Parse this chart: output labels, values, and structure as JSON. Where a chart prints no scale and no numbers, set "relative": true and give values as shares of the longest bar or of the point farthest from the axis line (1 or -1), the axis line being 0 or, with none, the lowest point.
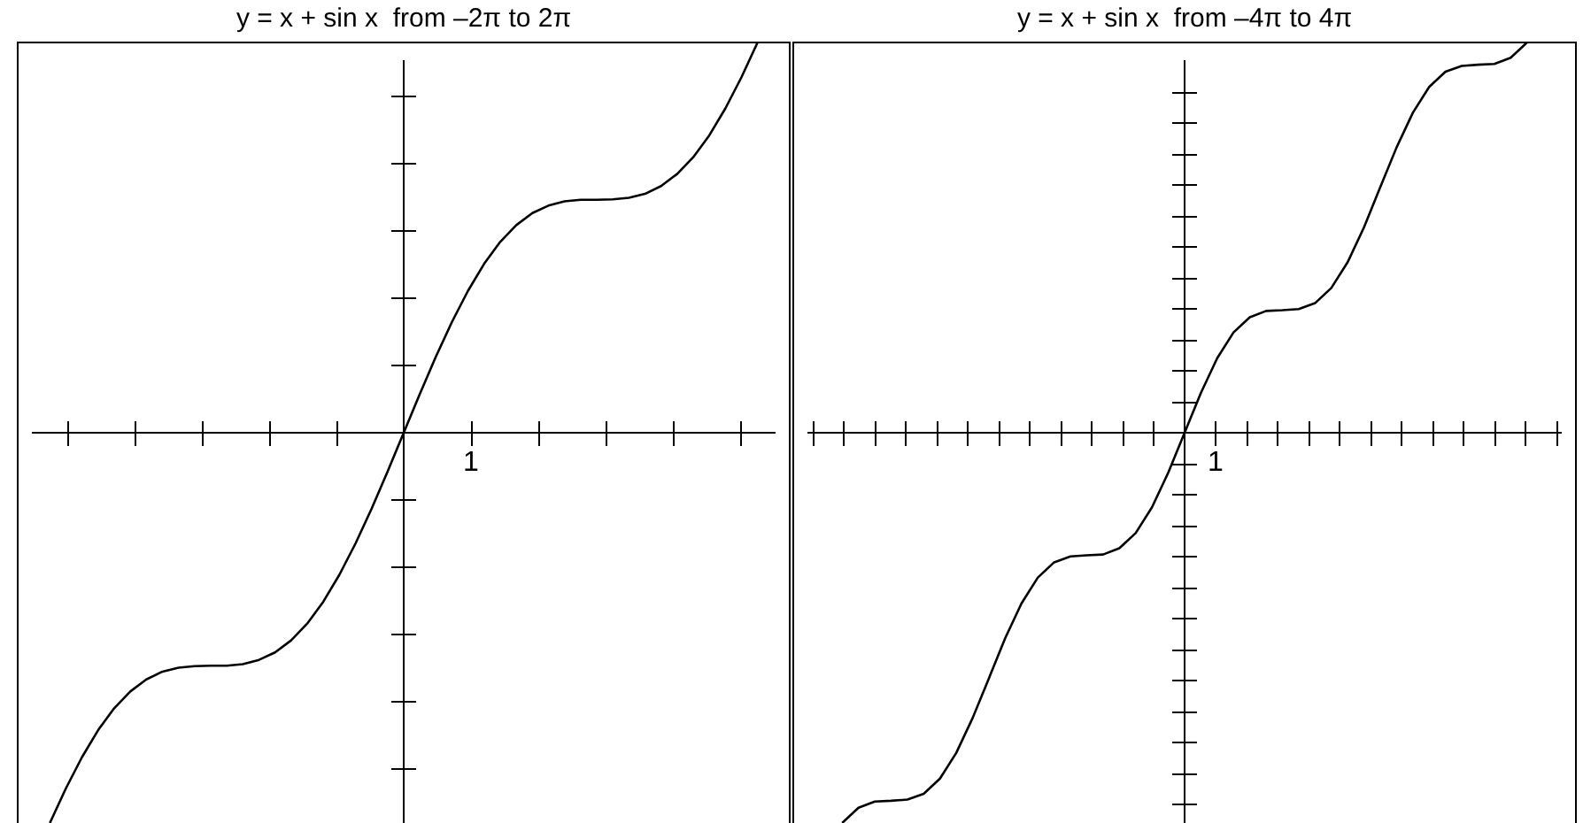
{
  "chart_data": [
    {
      "type": "line",
      "title": "y = x + sin x  from –2π to 2π",
      "relative": true,
      "legend": false,
      "marker": "none",
      "annotations": [
        "1"
      ],
      "categories": [
        null,
        null,
        null,
        null,
        null,
        null,
        null,
        null,
        null,
        null,
        null,
        null,
        null,
        null,
        null,
        null,
        null,
        null,
        null,
        null,
        null,
        null,
        null,
        null,
        null,
        null,
        null,
        null,
        null,
        null,
        null,
        null,
        null,
        null,
        null,
        null,
        null,
        null,
        null,
        null,
        null,
        null,
        null,
        null,
        null,
        null,
        null,
        null,
        null
      ],
      "series": [
        {
          "color": "#000000",
          "values": [
            null,
            null,
            -1,
            -0.911,
            -0.831,
            -0.762,
            -0.706,
            -0.663,
            -0.632,
            -0.612,
            -0.602,
            -0.598,
            -0.597,
            -0.597,
            -0.593,
            -0.582,
            -0.563,
            -0.532,
            -0.489,
            -0.433,
            -0.364,
            -0.284,
            -0.195,
            -0.099,
            0,
            0.099,
            0.195,
            0.284,
            0.364,
            0.433,
            0.489,
            0.532,
            0.563,
            0.582,
            0.593,
            0.597,
            0.597,
            0.598,
            0.602,
            0.612,
            0.632,
            0.663,
            0.706,
            0.762,
            0.831,
            0.911,
            1,
            null,
            null
          ]
        }
      ]
    },
    {
      "type": "line",
      "title": "y = x + sin x  from –4π to 4π",
      "relative": true,
      "legend": false,
      "marker": "none",
      "annotations": [
        "1"
      ],
      "categories": [
        null,
        null,
        null,
        null,
        null,
        null,
        null,
        null,
        null,
        null,
        null,
        null,
        null,
        null,
        null,
        null,
        null,
        null,
        null,
        null,
        null,
        null,
        null,
        null,
        null,
        null,
        null,
        null,
        null,
        null,
        null,
        null,
        null,
        null,
        null,
        null,
        null,
        null,
        null,
        null,
        null,
        null,
        null,
        null,
        null,
        null,
        null,
        null,
        null
      ],
      "series": [
        {
          "color": "#000000",
          "values": [
            null,
            null,
            null,
            -1,
            -0.961,
            -0.945,
            -0.943,
            -0.94,
            -0.925,
            -0.886,
            -0.82,
            -0.731,
            -0.629,
            -0.526,
            -0.437,
            -0.371,
            -0.332,
            -0.317,
            -0.314,
            -0.312,
            -0.296,
            -0.257,
            -0.191,
            -0.102,
            0,
            0.102,
            0.191,
            0.257,
            0.296,
            0.312,
            0.314,
            0.317,
            0.332,
            0.371,
            0.437,
            0.526,
            0.629,
            0.731,
            0.82,
            0.886,
            0.925,
            0.94,
            0.943,
            0.945,
            0.961,
            1,
            null,
            null,
            null
          ]
        }
      ]
    }
  ]
}
